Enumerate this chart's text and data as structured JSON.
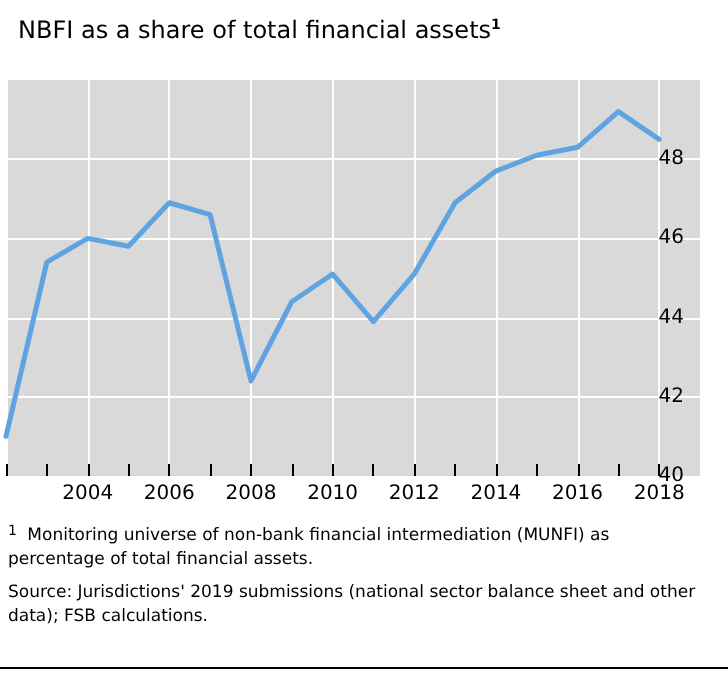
{
  "chart_data": {
    "type": "line",
    "title": "NBFI as a share of total financial assets$^{1}$",
    "x": [
      2002,
      2003,
      2004,
      2005,
      2006,
      2007,
      2008,
      2009,
      2010,
      2011,
      2012,
      2013,
      2014,
      2015,
      2016,
      2017,
      2018
    ],
    "series": [
      {
        "color": "#5fa3e0",
        "values": [
          41.0,
          45.4,
          46.0,
          45.8,
          46.9,
          46.6,
          42.4,
          44.4,
          45.1,
          43.9,
          45.1,
          46.9,
          47.7,
          48.1,
          48.3,
          49.2,
          48.5
        ]
      }
    ],
    "xlim": [
      2002,
      2019
    ],
    "xticks": [
      {
        "value": 2002,
        "label": null
      },
      {
        "value": 2003,
        "label": null
      },
      2004,
      {
        "value": 2005,
        "label": null
      },
      2006,
      {
        "value": 2007,
        "label": null
      },
      2008,
      {
        "value": 2009,
        "label": null
      },
      2010,
      {
        "value": 2011,
        "label": null
      },
      2012,
      {
        "value": 2013,
        "label": null
      },
      2014,
      {
        "value": 2015,
        "label": null
      },
      2016,
      {
        "value": 2017,
        "label": null
      },
      2018
    ],
    "ylim": [
      40,
      50
    ],
    "yticks": [
      40,
      42,
      44,
      46,
      48
    ],
    "grid": true,
    "marker": "none",
    "line_style": "solid",
    "annotations": [
      "$^{1}$  Monitoring universe of non-bank financial intermediation (MUNFI) as percentage of total financial assets.",
      "Source: Jurisdictions' 2019 submissions (national sector balance sheet and other data); FSB calculations."
    ]
  }
}
